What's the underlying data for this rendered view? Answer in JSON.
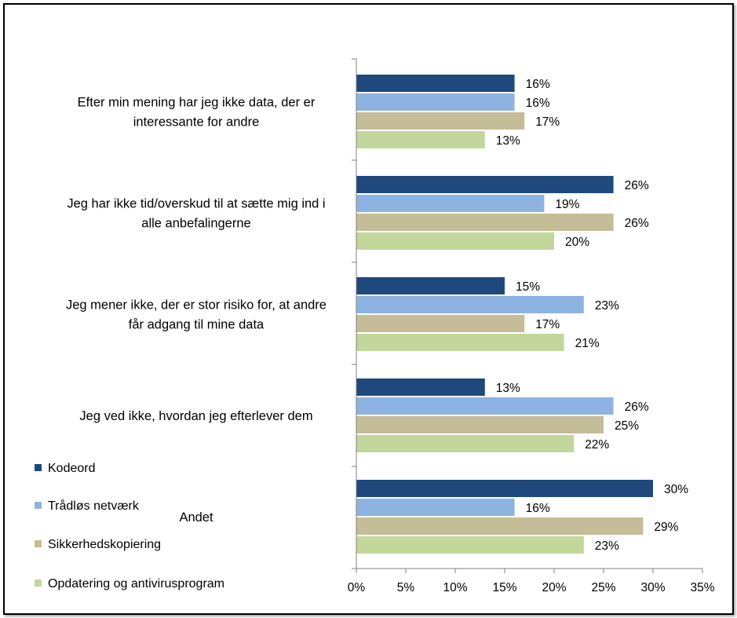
{
  "chart_data": {
    "type": "bar",
    "orientation": "horizontal",
    "categories": [
      [
        "Efter min mening har jeg ikke data, der er",
        "interessante for andre"
      ],
      [
        "Jeg har ikke tid/overskud til at sætte mig ind i",
        "alle anbefalingerne"
      ],
      [
        "Jeg mener ikke, der er stor risiko for, at andre",
        "får adgang til mine data"
      ],
      [
        "Jeg ved ikke, hvordan jeg efterlever dem"
      ],
      [
        "Andet"
      ]
    ],
    "series": [
      {
        "name": "Kodeord",
        "color": "#1f497d",
        "values": [
          16,
          26,
          15,
          13,
          30
        ],
        "labels": [
          "16%",
          "26%",
          "15%",
          "13%",
          "30%"
        ]
      },
      {
        "name": "Trådløs netværk",
        "color": "#8db3e2",
        "values": [
          16,
          19,
          23,
          26,
          16
        ],
        "labels": [
          "16%",
          "19%",
          "23%",
          "26%",
          "16%"
        ]
      },
      {
        "name": "Sikkerhedskopiering",
        "color": "#c4bd97",
        "values": [
          17,
          26,
          17,
          25,
          29
        ],
        "labels": [
          "17%",
          "26%",
          "17%",
          "25%",
          "29%"
        ]
      },
      {
        "name": "Opdatering og antivirusprogram",
        "color": "#c3d69b",
        "values": [
          13,
          20,
          21,
          22,
          23
        ],
        "labels": [
          "13%",
          "20%",
          "21%",
          "22%",
          "23%"
        ]
      }
    ],
    "xlim": [
      0,
      35
    ],
    "xticks": [
      "0%",
      "5%",
      "10%",
      "15%",
      "20%",
      "25%",
      "30%",
      "35%"
    ],
    "grid": false,
    "legend_position": "bottom-left"
  }
}
